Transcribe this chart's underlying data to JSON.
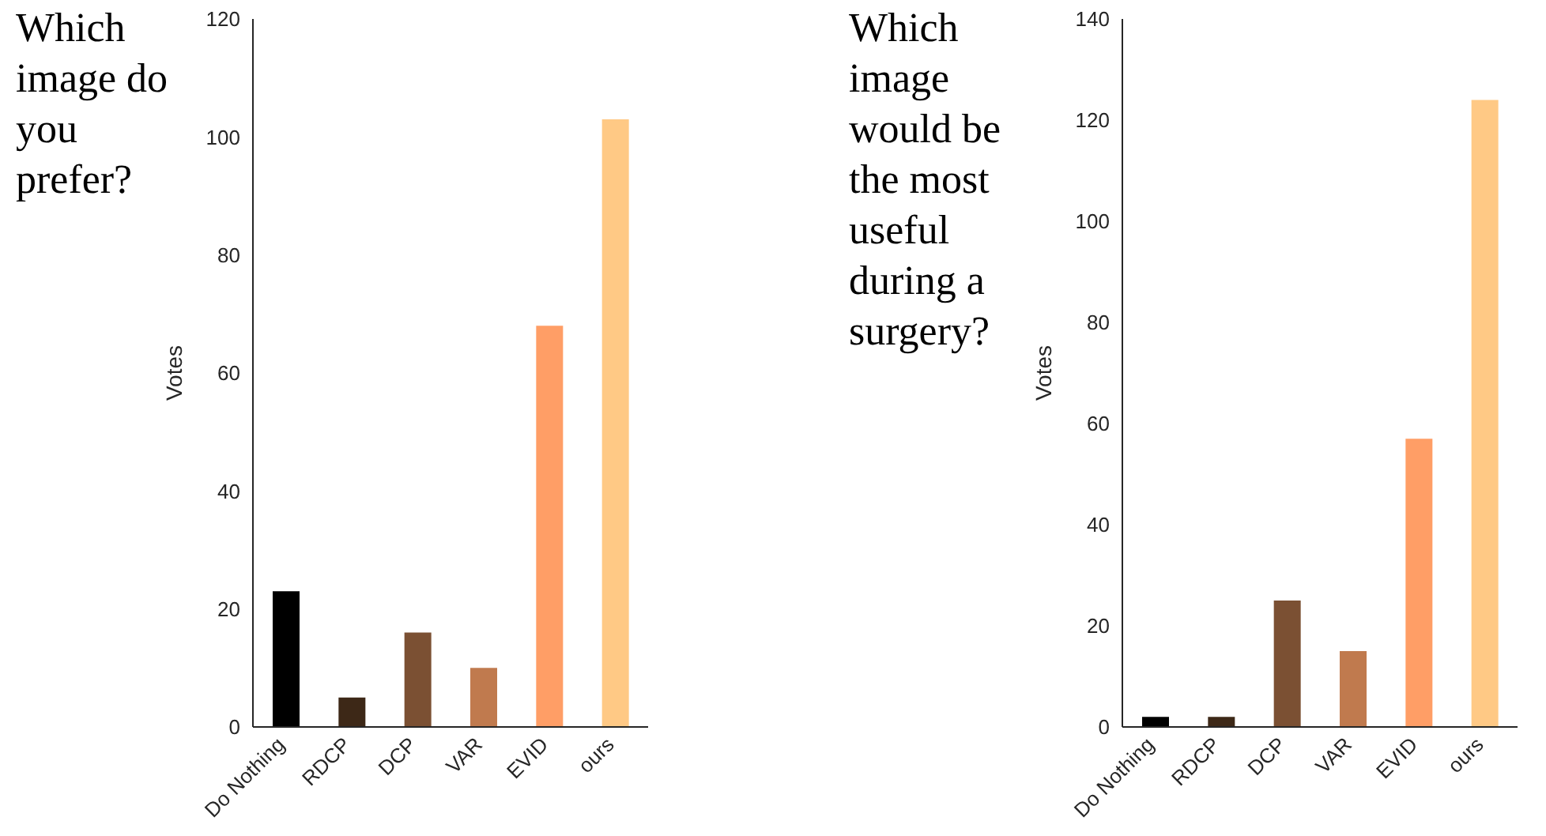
{
  "chart_data": [
    {
      "type": "bar",
      "title": "Which image do you prefer?",
      "ylabel": "Votes",
      "categories": [
        "Do Nothing",
        "RDCP",
        "DCP",
        "VAR",
        "EVID",
        "ours"
      ],
      "values": [
        23,
        5,
        16,
        10,
        68,
        103
      ],
      "colors": [
        "#000000",
        "#3d2817",
        "#7b5033",
        "#c07a4e",
        "#ff9e66",
        "#ffc985"
      ],
      "ylim": [
        0,
        120
      ],
      "yticks": [
        0,
        20,
        40,
        60,
        80,
        100,
        120
      ],
      "grid": false,
      "legend": false
    },
    {
      "type": "bar",
      "title": "Which image would be the most useful during a surgery?",
      "ylabel": "Votes",
      "categories": [
        "Do Nothing",
        "RDCP",
        "DCP",
        "VAR",
        "EVID",
        "ours"
      ],
      "values": [
        2,
        2,
        25,
        15,
        57,
        124
      ],
      "colors": [
        "#000000",
        "#3d2817",
        "#7b5033",
        "#c07a4e",
        "#ff9e66",
        "#ffc985"
      ],
      "ylim": [
        0,
        140
      ],
      "yticks": [
        0,
        20,
        40,
        60,
        80,
        100,
        120,
        140
      ],
      "grid": false,
      "legend": false
    }
  ]
}
